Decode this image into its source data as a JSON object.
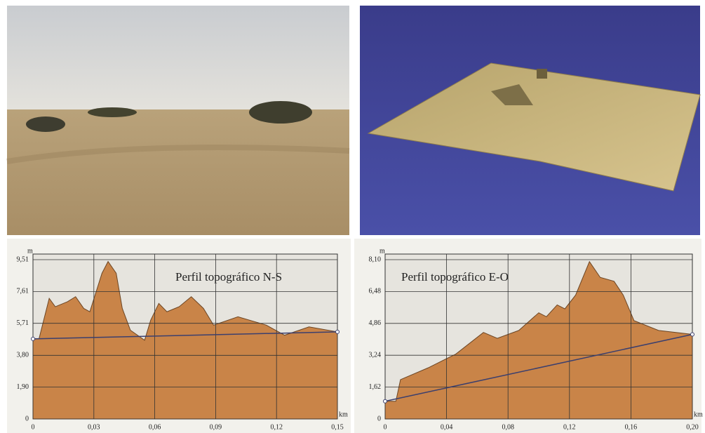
{
  "chart_data": [
    {
      "type": "area",
      "title": "Perfil topográfico N-S",
      "xlabel": "km",
      "ylabel": "m",
      "x": [
        0,
        0.003,
        0.008,
        0.011,
        0.017,
        0.021,
        0.025,
        0.028,
        0.034,
        0.037,
        0.041,
        0.044,
        0.048,
        0.055,
        0.058,
        0.062,
        0.066,
        0.072,
        0.078,
        0.084,
        0.089,
        0.101,
        0.115,
        0.124,
        0.136,
        0.15
      ],
      "series": [
        {
          "color": "#c98448",
          "values": [
            4.78,
            4.8,
            7.2,
            6.7,
            7.0,
            7.3,
            6.6,
            6.4,
            8.7,
            9.4,
            8.7,
            6.6,
            5.3,
            4.7,
            5.9,
            6.9,
            6.4,
            6.7,
            7.3,
            6.6,
            5.6,
            6.1,
            5.6,
            5.0,
            5.5,
            5.2
          ]
        }
      ],
      "reference_line": {
        "x": [
          0,
          0.15
        ],
        "values": [
          4.78,
          5.2
        ],
        "color": "#3b3f6e"
      },
      "xlim": [
        0,
        0.15
      ],
      "ylim": [
        0,
        9.51
      ],
      "xticks": [
        0,
        {
          "value": 0.03,
          "label": "0,03"
        },
        {
          "value": 0.06,
          "label": "0,06"
        },
        {
          "value": 0.09,
          "label": "0,09"
        },
        {
          "value": 0.12,
          "label": "0,12"
        },
        {
          "value": 0.15,
          "label": "0,15"
        }
      ],
      "yticks": [
        0,
        {
          "value": 1.9,
          "label": "1,90"
        },
        {
          "value": 3.8,
          "label": "3,80"
        },
        {
          "value": 5.71,
          "label": "5,71"
        },
        {
          "value": 7.61,
          "label": "7,61"
        },
        {
          "value": 9.51,
          "label": "9,51"
        }
      ],
      "grid": true
    },
    {
      "type": "area",
      "title": "Perfil topográfico E-O",
      "xlabel": "km",
      "ylabel": "m",
      "x": [
        0,
        0.007,
        0.01,
        0.028,
        0.046,
        0.064,
        0.073,
        0.087,
        0.1,
        0.105,
        0.112,
        0.117,
        0.124,
        0.133,
        0.14,
        0.149,
        0.155,
        0.162,
        0.178,
        0.2
      ],
      "series": [
        {
          "color": "#c98448",
          "values": [
            0.9,
            0.9,
            2.0,
            2.6,
            3.3,
            4.4,
            4.1,
            4.5,
            5.4,
            5.2,
            5.8,
            5.6,
            6.3,
            8.0,
            7.2,
            7.0,
            6.3,
            5.0,
            4.5,
            4.3
          ]
        }
      ],
      "reference_line": {
        "x": [
          0,
          0.2
        ],
        "values": [
          0.9,
          4.3
        ],
        "color": "#3b3f6e"
      },
      "xlim": [
        0,
        0.2
      ],
      "ylim": [
        0,
        8.1
      ],
      "xticks": [
        0,
        {
          "value": 0.04,
          "label": "0,04"
        },
        {
          "value": 0.08,
          "label": "0,08"
        },
        {
          "value": 0.12,
          "label": "0,12"
        },
        {
          "value": 0.16,
          "label": "0,16"
        },
        {
          "value": 0.2,
          "label": "0,20"
        }
      ],
      "yticks": [
        0,
        {
          "value": 1.62,
          "label": "1,62"
        },
        {
          "value": 3.24,
          "label": "3,24"
        },
        {
          "value": 4.86,
          "label": "4,86"
        },
        {
          "value": 6.48,
          "label": "6,48"
        },
        {
          "value": 8.1,
          "label": "8,10"
        }
      ],
      "grid": true
    }
  ]
}
